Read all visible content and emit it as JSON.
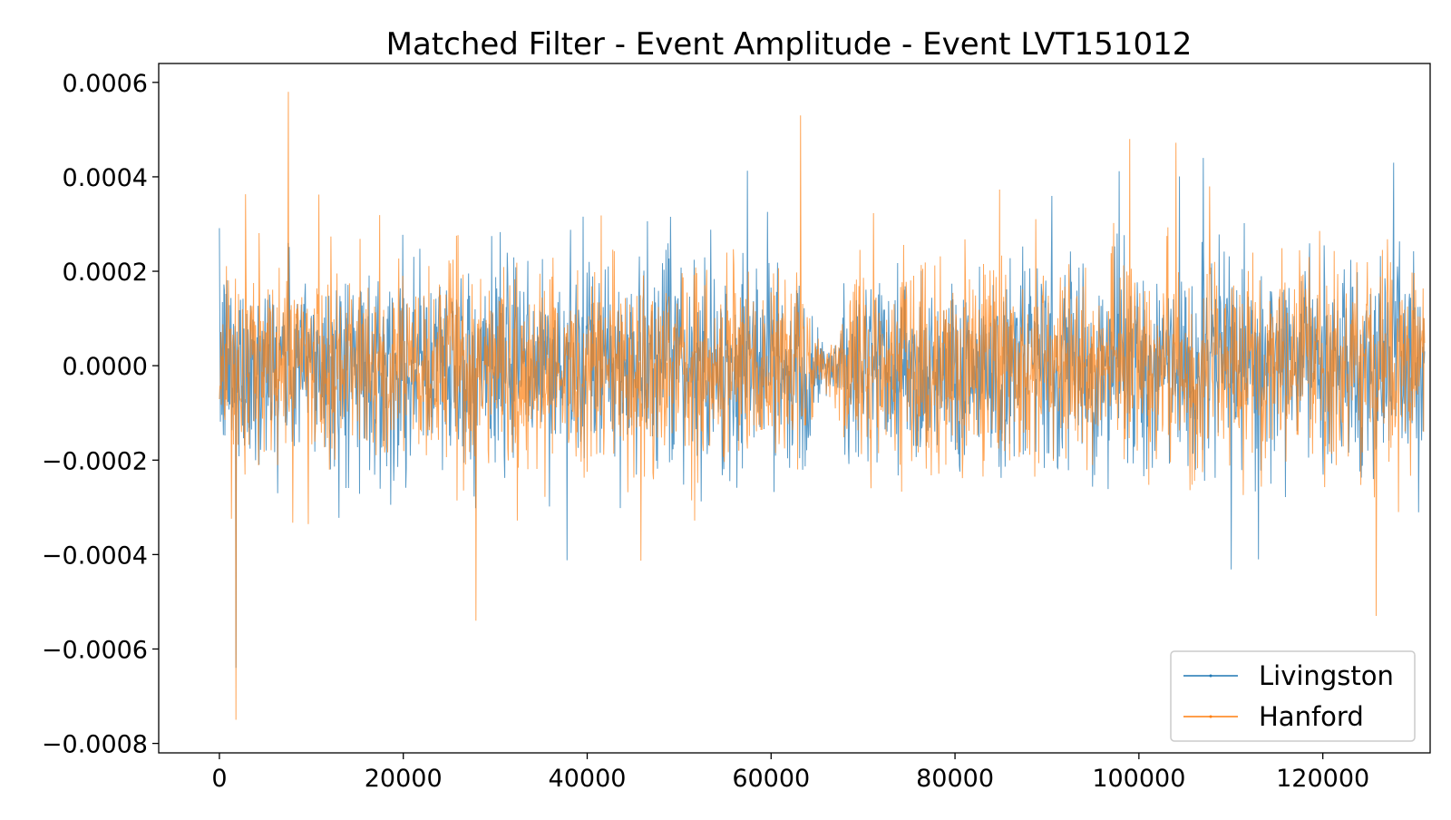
{
  "chart_data": {
    "type": "line",
    "title": "Matched Filter - Event Amplitude - Event LVT151012",
    "xlabel": "",
    "ylabel": "",
    "xlim": [
      -6600,
      131672
    ],
    "ylim": [
      -0.00082,
      0.00064
    ],
    "x_range": [
      0,
      131072
    ],
    "grid": false,
    "legend_position": "lower right",
    "x_ticks": [
      {
        "value": 0,
        "label": "0"
      },
      {
        "value": 20000,
        "label": "20000"
      },
      {
        "value": 40000,
        "label": "40000"
      },
      {
        "value": 60000,
        "label": "60000"
      },
      {
        "value": 80000,
        "label": "80000"
      },
      {
        "value": 100000,
        "label": "100000"
      },
      {
        "value": 120000,
        "label": "120000"
      }
    ],
    "y_ticks": [
      {
        "value": 0.0006,
        "label": "0.0006"
      },
      {
        "value": 0.0004,
        "label": "0.0004"
      },
      {
        "value": 0.0002,
        "label": "0.0002"
      },
      {
        "value": 0.0,
        "label": "0.0000"
      },
      {
        "value": -0.0002,
        "label": "−0.0002"
      },
      {
        "value": -0.0004,
        "label": "−0.0004"
      },
      {
        "value": -0.0006,
        "label": "−0.0006"
      },
      {
        "value": -0.0008,
        "label": "−0.0008"
      }
    ],
    "series": [
      {
        "name": "Livingston",
        "color": "#1f77b4",
        "typical_std": 0.000105,
        "notable_extremes": [
          [
            1800,
            -0.00064
          ],
          [
            107000,
            0.00044
          ],
          [
            127700,
            0.00043
          ],
          [
            113000,
            -0.00041
          ]
        ]
      },
      {
        "name": "Hanford",
        "color": "#ff7f0e",
        "typical_std": 0.000105,
        "notable_extremes": [
          [
            7500,
            0.00058
          ],
          [
            1800,
            -0.00075
          ],
          [
            63200,
            0.00053
          ],
          [
            27900,
            -0.00054
          ],
          [
            99000,
            0.00048
          ],
          [
            125800,
            -0.00053
          ]
        ]
      }
    ],
    "quiet_region_x": [
      64000,
      67800
    ],
    "quiet_region_amplitude": 8e-05
  }
}
